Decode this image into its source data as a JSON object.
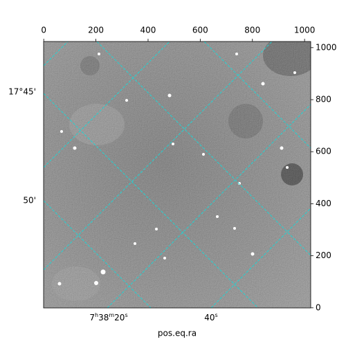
{
  "chart_data": {
    "type": "image",
    "xlim": [
      -0.5,
      1023.5
    ],
    "ylim": [
      -0.5,
      1023.5
    ],
    "xticks": [
      0,
      200,
      400,
      600,
      800,
      1000
    ],
    "yticks": [
      0,
      200,
      400,
      600,
      800,
      1000
    ],
    "xlabel": "pos.eq.ra",
    "ra_tick_labels": [
      "7h38m20s",
      "40s"
    ],
    "dec_tick_labels": [
      "17°45'",
      "50'"
    ]
  }
}
